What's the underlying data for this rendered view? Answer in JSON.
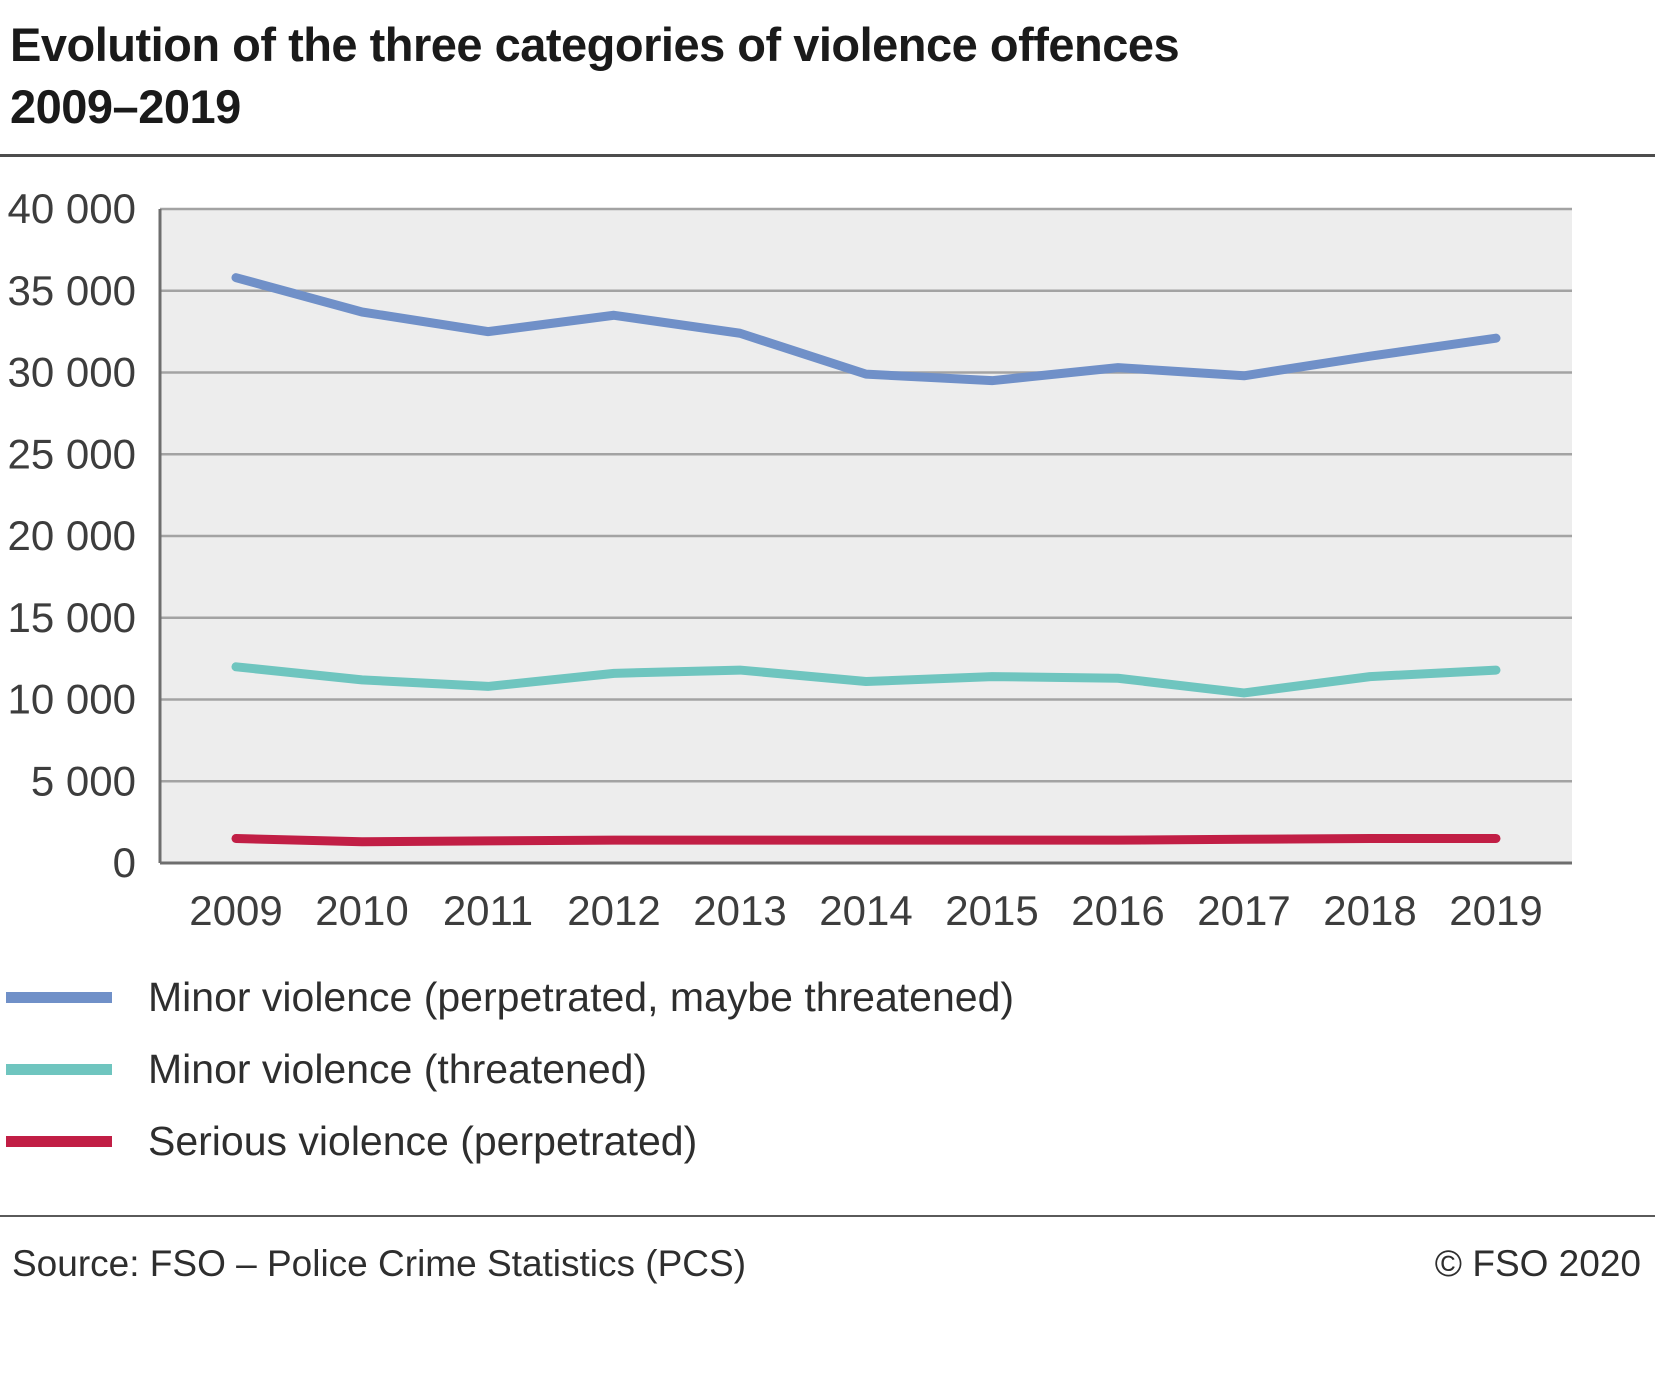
{
  "title": {
    "line1": "Evolution of the three categories of violence offences",
    "line2": "2009–2019"
  },
  "footer": {
    "source": "Source: FSO – Police Crime Statistics (PCS)",
    "copyright": "© FSO 2020"
  },
  "colors": {
    "plot_background": "#ededed",
    "gridline": "#a3a3a3",
    "axis": "#6e6e6e",
    "tick_text": "#3d3d3d"
  },
  "chart_data": {
    "type": "line",
    "x": [
      2009,
      2010,
      2011,
      2012,
      2013,
      2014,
      2015,
      2016,
      2017,
      2018,
      2019
    ],
    "series": [
      {
        "name": "Minor violence (perpetrated, maybe threatened)",
        "color": "#7090c8",
        "values": [
          35800,
          33700,
          32500,
          33500,
          32400,
          29900,
          29500,
          30300,
          29800,
          31000,
          32100
        ]
      },
      {
        "name": "Minor violence (threatened)",
        "color": "#6fc5bf",
        "values": [
          12000,
          11200,
          10800,
          11600,
          11800,
          11100,
          11400,
          11300,
          10400,
          11400,
          11800
        ]
      },
      {
        "name": "Serious violence (perpetrated)",
        "color": "#c11e45",
        "values": [
          1500,
          1300,
          1350,
          1400,
          1400,
          1400,
          1400,
          1400,
          1450,
          1500,
          1500
        ]
      }
    ],
    "title": "Evolution of the three categories of violence offences 2009–2019",
    "xlabel": "",
    "ylabel": "",
    "ylim": [
      0,
      40000
    ],
    "ytick_step": 5000,
    "grid": true,
    "legend_position": "bottom"
  }
}
